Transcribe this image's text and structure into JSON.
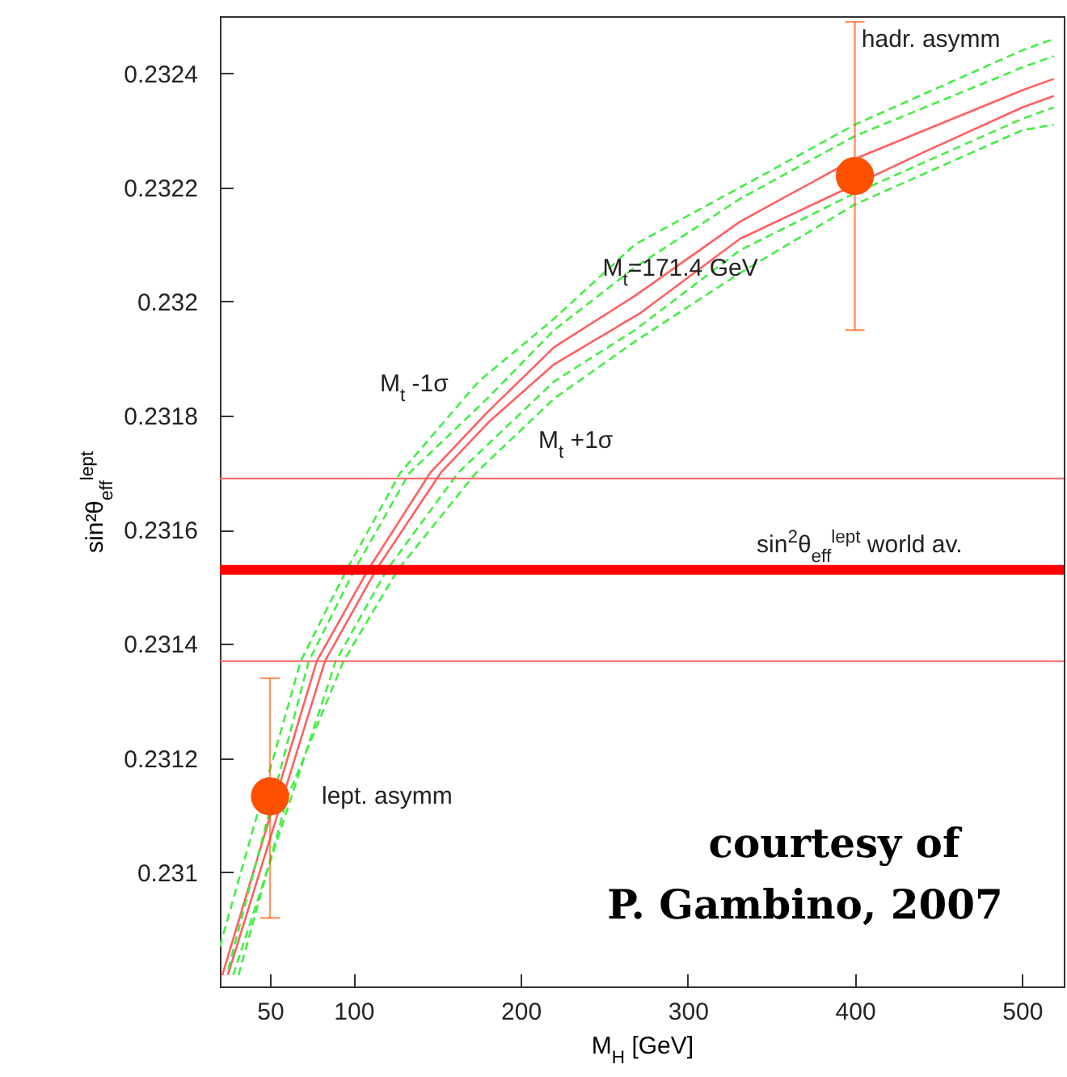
{
  "chart_data": {
    "type": "line",
    "xlabel": "M$_{H}$ [GeV]",
    "ylabel": "sin²θ$_{eff}$$^{lept}$",
    "xlim": [
      20,
      525
    ],
    "xticks": [
      50,
      100,
      200,
      300,
      400,
      500
    ],
    "ylim": [
      0.2308,
      0.2325
    ],
    "yticks": [
      0.231,
      0.2312,
      0.2314,
      0.2316,
      0.2318,
      0.232,
      0.2322,
      0.2324
    ],
    "grid": false,
    "series": [
      {
        "color": "#ff6060",
        "line_style": "solid",
        "x": [
          21.5,
          78,
          108.7,
          145.9,
          179.7,
          220,
          268.4,
          331.3,
          400,
          500,
          519
        ],
        "values": [
          0.23082,
          0.23137,
          0.23153,
          0.2317,
          0.231805,
          0.23192,
          0.23201,
          0.23214,
          0.23225,
          0.23237,
          0.23239
        ]
      },
      {
        "color": "#ff6060",
        "line_style": "solid",
        "x": [
          24.8,
          82.9,
          113.5,
          152.2,
          181.3,
          220,
          271.7,
          331.3,
          440,
          500,
          519
        ],
        "values": [
          0.23082,
          0.23137,
          0.23153,
          0.2317,
          0.23179,
          0.23189,
          0.23198,
          0.23211,
          0.23226,
          0.23234,
          0.23236
        ]
      },
      {
        "color": "#44ee44",
        "line_style": "dashed",
        "x": [
          20,
          68.4,
          95.8,
          128,
          174.9,
          220,
          268.4,
          331.3,
          400,
          500,
          519
        ],
        "values": [
          0.23087,
          0.23137,
          0.23153,
          0.2317,
          0.23186,
          0.23197,
          0.2321,
          0.2322,
          0.23231,
          0.23244,
          0.23246
        ]
      },
      {
        "color": "#44ee44",
        "line_style": "dashed",
        "x": [
          25,
          73.2,
          100.6,
          133.5,
          180,
          220,
          268.4,
          331.3,
          400,
          500,
          519
        ],
        "values": [
          0.23083,
          0.23137,
          0.23153,
          0.2317,
          0.23183,
          0.23195,
          0.23206,
          0.23218,
          0.23229,
          0.23241,
          0.23243
        ]
      },
      {
        "color": "#44ee44",
        "line_style": "dashed",
        "x": [
          28,
          89.3,
          120,
          162.6,
          220,
          268.4,
          331.3,
          400,
          500,
          519
        ],
        "values": [
          0.23082,
          0.23137,
          0.23153,
          0.2317,
          0.23186,
          0.23195,
          0.23209,
          0.23219,
          0.23232,
          0.23234
        ]
      },
      {
        "color": "#44ee44",
        "line_style": "dashed",
        "x": [
          31.2,
          60.3,
          94,
          126.5,
          173.3,
          220,
          268.4,
          331.3,
          400,
          500,
          519
        ],
        "values": [
          0.23082,
          0.23113,
          0.23137,
          0.23153,
          0.2317,
          0.23183,
          0.23193,
          0.23205,
          0.23217,
          0.2323,
          0.23231
        ]
      },
      {
        "type": "scatter",
        "color": "#ff5000",
        "marker": "circle",
        "x": [
          50,
          400
        ],
        "values": [
          0.231133,
          0.23222
        ],
        "errors": [
          [
            0.23092,
            0.23134
          ],
          [
            0.23195,
            0.23249
          ]
        ]
      }
    ],
    "ref_lines": [
      {
        "axis": "y",
        "value": 0.23153,
        "label": "sin$^{2}$θ$_{eff}$$^{lept}$ world av.",
        "color": "#ff0000"
      },
      {
        "axis": "y",
        "value": 0.23169,
        "color": "#ff6060"
      },
      {
        "axis": "y",
        "value": 0.23137,
        "color": "#ff6060"
      }
    ],
    "annotations": [
      {
        "text": "M$_{t}$=171.4 GeV",
        "x": 249,
        "y": 0.23206
      },
      "M$_{t}$ -1σ",
      "M$_{t}$ +1σ",
      {
        "text": "hadr. asymm",
        "x": 404,
        "y": 0.23246
      },
      "lept. asymm",
      "courtesy of",
      "P. Gambino, 2007"
    ]
  }
}
